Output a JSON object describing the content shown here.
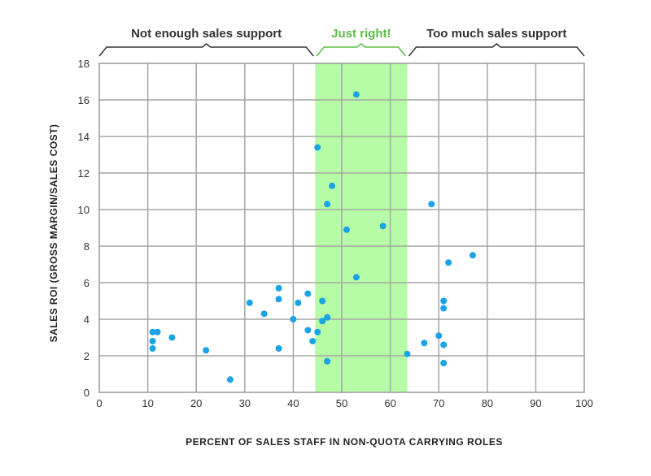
{
  "chart_data": {
    "type": "scatter",
    "title": "",
    "xlabel": "PERCENT OF SALES STAFF IN NON-QUOTA CARRYING ROLES",
    "ylabel": "SALES ROI (GROSS MARGIN/SALES COST)",
    "xlim": [
      0,
      100
    ],
    "ylim": [
      0,
      18
    ],
    "x_ticks": [
      0,
      10,
      20,
      30,
      40,
      50,
      60,
      70,
      80,
      90,
      100
    ],
    "y_ticks": [
      0,
      2,
      4,
      6,
      8,
      10,
      12,
      14,
      16,
      18
    ],
    "grid": true,
    "marker_color": "#1aa3e6",
    "highlight_band": {
      "from": 44.5,
      "to": 63.5,
      "color": "#b6fca6"
    },
    "regions": [
      {
        "label": "Not enough sales support",
        "from": 0,
        "to": 44.5,
        "color": "#333333"
      },
      {
        "label": "Just right!",
        "from": 44.5,
        "to": 63.5,
        "color": "#5dbb46"
      },
      {
        "label": "Too much sales support",
        "from": 63.5,
        "to": 100,
        "color": "#333333"
      }
    ],
    "points": [
      {
        "x": 11,
        "y": 3.3
      },
      {
        "x": 12,
        "y": 3.3
      },
      {
        "x": 11,
        "y": 2.8
      },
      {
        "x": 11,
        "y": 2.4
      },
      {
        "x": 15,
        "y": 3.0
      },
      {
        "x": 22,
        "y": 2.3
      },
      {
        "x": 27,
        "y": 0.7
      },
      {
        "x": 31,
        "y": 4.9
      },
      {
        "x": 34,
        "y": 4.3
      },
      {
        "x": 37,
        "y": 5.7
      },
      {
        "x": 37,
        "y": 5.1
      },
      {
        "x": 37,
        "y": 2.4
      },
      {
        "x": 40,
        "y": 4.0
      },
      {
        "x": 41,
        "y": 4.9
      },
      {
        "x": 43,
        "y": 5.4
      },
      {
        "x": 43,
        "y": 3.4
      },
      {
        "x": 44,
        "y": 2.8
      },
      {
        "x": 45,
        "y": 3.3
      },
      {
        "x": 46,
        "y": 5.0
      },
      {
        "x": 46,
        "y": 3.9
      },
      {
        "x": 47,
        "y": 4.1
      },
      {
        "x": 47,
        "y": 1.7
      },
      {
        "x": 45,
        "y": 13.4
      },
      {
        "x": 47,
        "y": 10.3
      },
      {
        "x": 48,
        "y": 11.3
      },
      {
        "x": 51,
        "y": 8.9
      },
      {
        "x": 53,
        "y": 16.3
      },
      {
        "x": 53,
        "y": 6.3
      },
      {
        "x": 58.5,
        "y": 9.1
      },
      {
        "x": 63.5,
        "y": 2.1
      },
      {
        "x": 67,
        "y": 2.7
      },
      {
        "x": 68.5,
        "y": 10.3
      },
      {
        "x": 70,
        "y": 3.1
      },
      {
        "x": 71,
        "y": 5.0
      },
      {
        "x": 71,
        "y": 4.6
      },
      {
        "x": 71,
        "y": 2.6
      },
      {
        "x": 71,
        "y": 1.6
      },
      {
        "x": 72,
        "y": 7.1
      },
      {
        "x": 77,
        "y": 7.5
      }
    ]
  }
}
